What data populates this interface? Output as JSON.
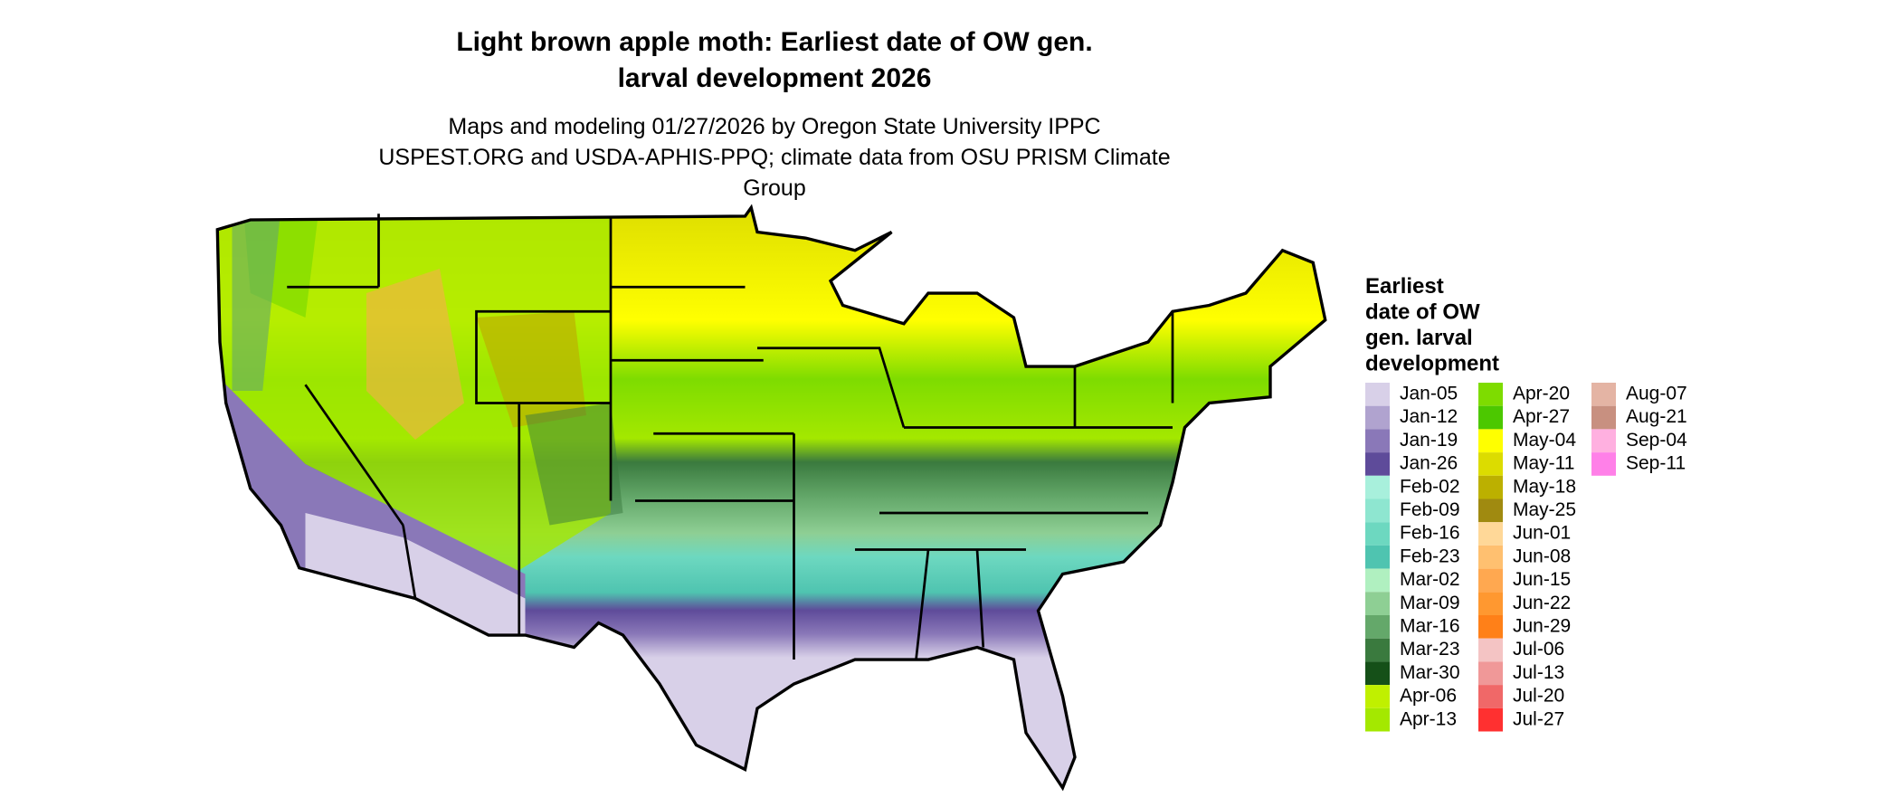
{
  "title": "Light brown apple moth: Earliest date of OW gen. larval development 2026",
  "subtitle": "Maps and modeling 01/27/2026 by Oregon State University IPPC USPEST.ORG and USDA-APHIS-PPQ; climate data from OSU PRISM Climate Group",
  "legend": {
    "title": "Earliest date of OW gen. larval development",
    "items": [
      {
        "label": "Jan-05",
        "color": "#d8d0e8"
      },
      {
        "label": "Jan-12",
        "color": "#b0a3cf"
      },
      {
        "label": "Jan-19",
        "color": "#8a78b8"
      },
      {
        "label": "Jan-26",
        "color": "#5e4b9a"
      },
      {
        "label": "Feb-02",
        "color": "#a8f0dc"
      },
      {
        "label": "Feb-09",
        "color": "#8ee6d0"
      },
      {
        "label": "Feb-16",
        "color": "#6dd8c0"
      },
      {
        "label": "Feb-23",
        "color": "#4fc4b0"
      },
      {
        "label": "Mar-02",
        "color": "#b0f0c0"
      },
      {
        "label": "Mar-09",
        "color": "#8ecf94"
      },
      {
        "label": "Mar-16",
        "color": "#64a86a"
      },
      {
        "label": "Mar-23",
        "color": "#3a7a3e"
      },
      {
        "label": "Mar-30",
        "color": "#155018"
      },
      {
        "label": "Apr-06",
        "color": "#c0f000"
      },
      {
        "label": "Apr-13",
        "color": "#a4e800"
      },
      {
        "label": "Apr-20",
        "color": "#7edc00"
      },
      {
        "label": "Apr-27",
        "color": "#4cc800"
      },
      {
        "label": "May-04",
        "color": "#ffff00"
      },
      {
        "label": "May-11",
        "color": "#dcdc00"
      },
      {
        "label": "May-18",
        "color": "#bcb000"
      },
      {
        "label": "May-25",
        "color": "#a08a10"
      },
      {
        "label": "Jun-01",
        "color": "#ffd898"
      },
      {
        "label": "Jun-08",
        "color": "#ffc070"
      },
      {
        "label": "Jun-15",
        "color": "#ffa850"
      },
      {
        "label": "Jun-22",
        "color": "#ff9830"
      },
      {
        "label": "Jun-29",
        "color": "#ff8018"
      },
      {
        "label": "Jul-06",
        "color": "#f4c4c4"
      },
      {
        "label": "Jul-13",
        "color": "#f09898"
      },
      {
        "label": "Jul-20",
        "color": "#f06868"
      },
      {
        "label": "Jul-27",
        "color": "#ff3030"
      },
      {
        "label": "Aug-07",
        "color": "#e4b4a4"
      },
      {
        "label": "Aug-21",
        "color": "#c89080"
      },
      {
        "label": "Sep-04",
        "color": "#ffb0e0"
      },
      {
        "label": "Sep-11",
        "color": "#ff80e8"
      }
    ]
  }
}
